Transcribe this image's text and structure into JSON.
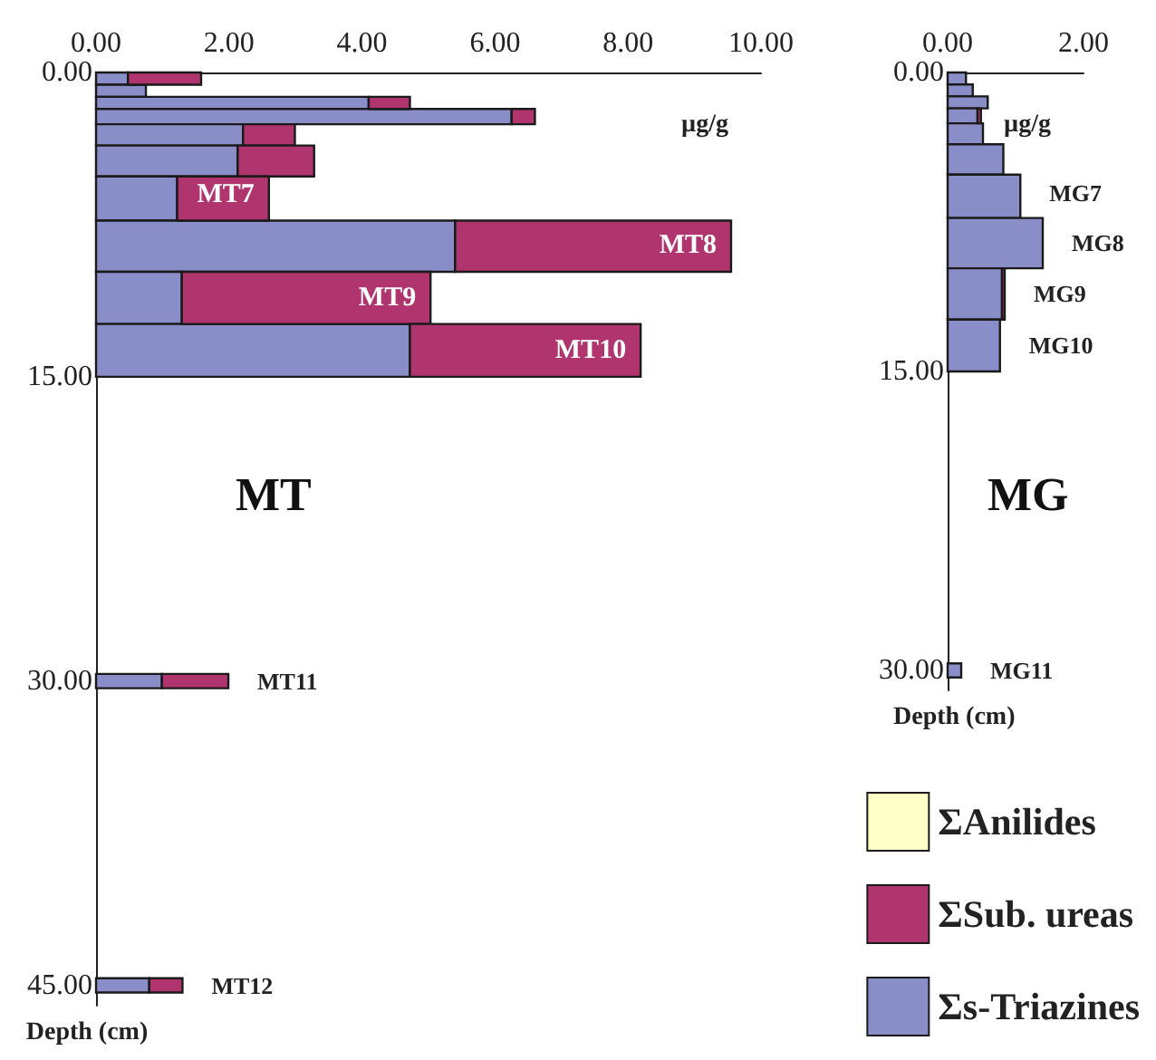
{
  "chart_data": [
    {
      "type": "bar",
      "orientation": "horizontal",
      "stacked": true,
      "xlabel": "µg/g",
      "ylabel": "Depth (cm)",
      "x": [
        0.3,
        0.9,
        1.5,
        2.1,
        3.0,
        4.2,
        6.05,
        8.55,
        11.1,
        13.7,
        30,
        45
      ],
      "series": [
        {
          "color": "#8a8ec8",
          "values": [
            0.48,
            0.75,
            4.1,
            6.25,
            2.21,
            2.13,
            1.22,
            5.4,
            1.29,
            4.72,
            0.99,
            0.8
          ]
        },
        {
          "color": "#b0356e",
          "values": [
            1.1,
            0,
            0.62,
            0.35,
            0.78,
            1.15,
            1.38,
            4.15,
            3.74,
            3.47,
            1.0,
            0.5
          ]
        },
        {
          "color": "#ffffc8",
          "values": [
            0,
            0,
            0,
            0,
            0,
            0,
            0,
            0,
            0,
            0,
            0,
            0
          ]
        }
      ],
      "xlim": [
        0,
        10
      ],
      "xticks": [
        {
          "value": 0,
          "label": "0.00"
        },
        {
          "value": 2,
          "label": "2.00"
        },
        {
          "value": 4,
          "label": "4.00"
        },
        {
          "value": 6,
          "label": "6.00"
        },
        {
          "value": 8,
          "label": "8.00"
        },
        {
          "value": 10,
          "label": "10.00"
        }
      ],
      "ylim": [
        46,
        0
      ],
      "yticks": [
        {
          "value": 0,
          "label": "0.00"
        },
        {
          "value": 15,
          "label": "15.00"
        },
        {
          "value": 30,
          "label": "30.00"
        },
        {
          "value": 45,
          "label": "45.00"
        }
      ],
      "grid": false,
      "legend": false,
      "annotations": [
        "MT",
        {
          "text": "MT7",
          "x": 2.6,
          "y": 6.05
        },
        {
          "text": "MT8",
          "x": 9.55,
          "y": 8.55
        },
        {
          "text": "MT9",
          "x": 5.03,
          "y": 11.1
        },
        {
          "text": "MT10",
          "x": 8.19,
          "y": 13.7
        },
        {
          "text": "MT11",
          "x": 1.99,
          "y": 30
        },
        {
          "text": "MT12",
          "x": 1.3,
          "y": 45
        }
      ]
    },
    {
      "type": "bar",
      "orientation": "horizontal",
      "stacked": true,
      "xlabel": "µg/g",
      "ylabel": "Depth (cm)",
      "x": [
        0.3,
        0.9,
        1.5,
        2.1,
        3.0,
        4.2,
        6.05,
        8.55,
        11.1,
        13.7,
        30
      ],
      "series": [
        {
          "name": "Σs-Triazines",
          "color": "#8a8ec8",
          "values": [
            0.27,
            0.37,
            0.59,
            0.44,
            0.52,
            0.82,
            1.07,
            1.4,
            0.8,
            0.77,
            0.2
          ]
        },
        {
          "name": "ΣSub. ureas",
          "color": "#b0356e",
          "values": [
            0,
            0,
            0,
            0.05,
            0,
            0,
            0,
            0,
            0.04,
            0,
            0
          ]
        },
        {
          "name": "ΣAnilides",
          "color": "#ffffc8",
          "values": [
            0,
            0,
            0,
            0,
            0,
            0,
            0,
            0,
            0,
            0,
            0
          ]
        }
      ],
      "xlim": [
        0,
        2
      ],
      "xticks": [
        {
          "value": 0,
          "label": "0.00"
        },
        {
          "value": 2,
          "label": "2.00"
        }
      ],
      "ylim": [
        31,
        0
      ],
      "yticks": [
        {
          "value": 0,
          "label": "0.00"
        },
        {
          "value": 15,
          "label": "15.00"
        },
        {
          "value": 30,
          "label": "30.00"
        }
      ],
      "grid": false,
      "legend": "bottom",
      "annotations": [
        "MG",
        {
          "text": "MG7",
          "x": 1.07,
          "y": 6.05
        },
        {
          "text": "MG8",
          "x": 1.4,
          "y": 8.55
        },
        {
          "text": "MG9",
          "x": 0.84,
          "y": 11.1
        },
        {
          "text": "MG10",
          "x": 0.77,
          "y": 13.7
        },
        {
          "text": "MG11",
          "x": 0.2,
          "y": 30
        }
      ]
    }
  ]
}
